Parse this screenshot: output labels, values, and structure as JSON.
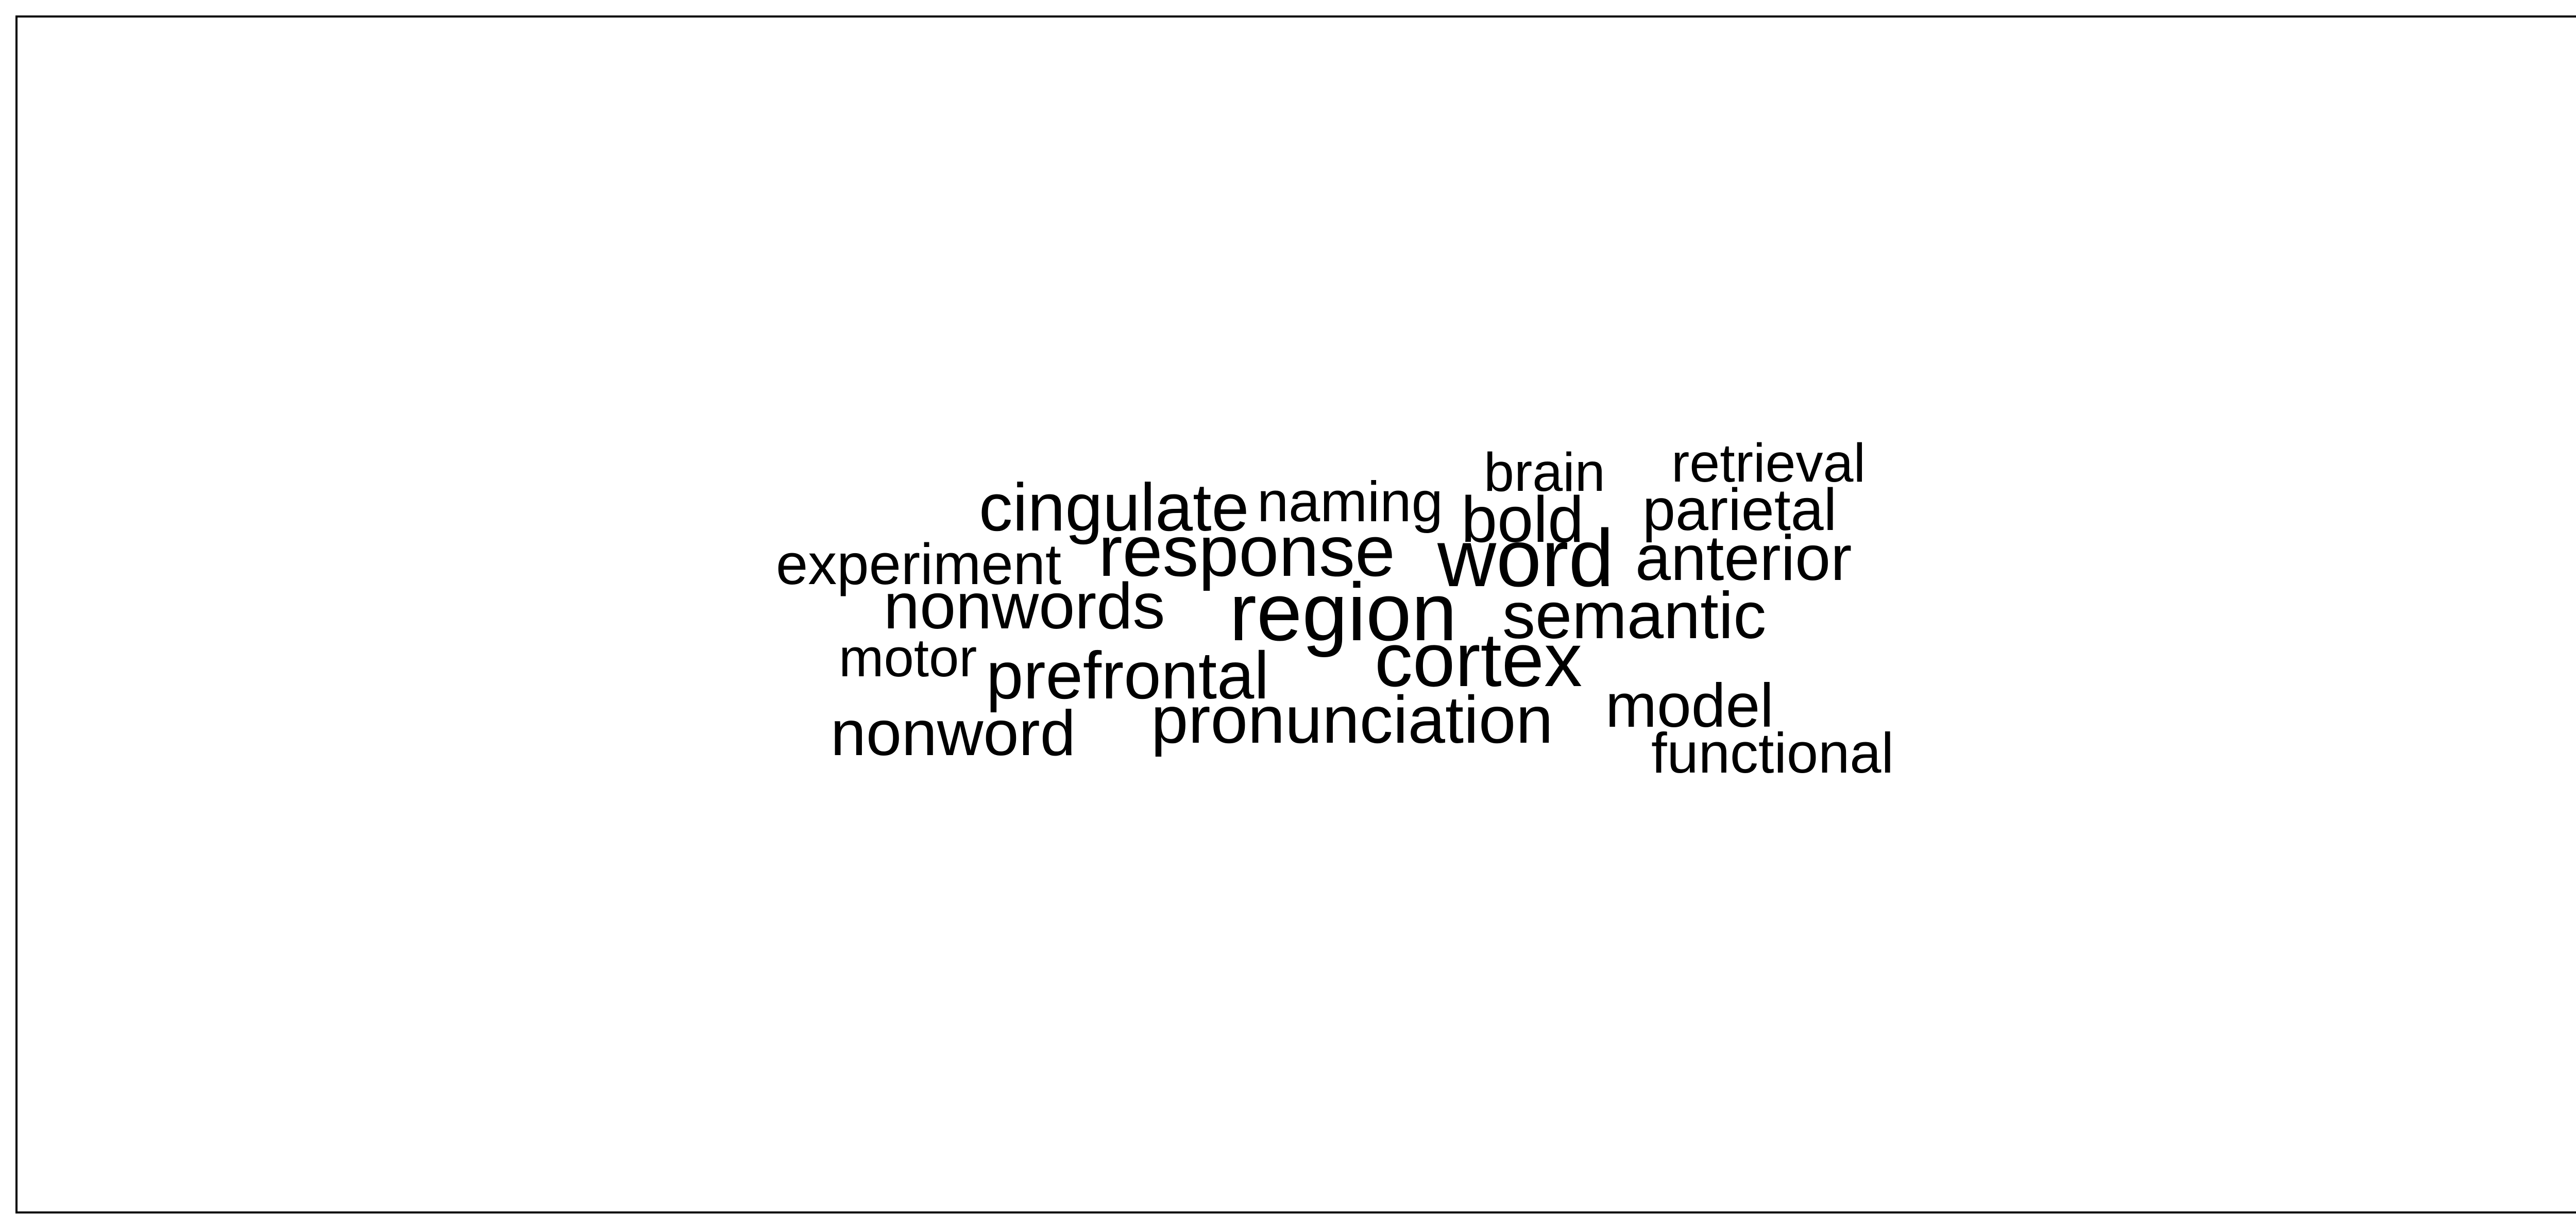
{
  "word_cloud": {
    "words": [
      {
        "text": "retrieval",
        "weight": 2
      },
      {
        "text": "brain",
        "weight": 2
      },
      {
        "text": "naming",
        "weight": 2
      },
      {
        "text": "cingulate",
        "weight": 3
      },
      {
        "text": "parietal",
        "weight": 2
      },
      {
        "text": "bold",
        "weight": 3
      },
      {
        "text": "response",
        "weight": 4
      },
      {
        "text": "word",
        "weight": 5
      },
      {
        "text": "anterior",
        "weight": 3
      },
      {
        "text": "experiment",
        "weight": 2
      },
      {
        "text": "nonwords",
        "weight": 3
      },
      {
        "text": "region",
        "weight": 5
      },
      {
        "text": "semantic",
        "weight": 3
      },
      {
        "text": "motor",
        "weight": 2
      },
      {
        "text": "cortex",
        "weight": 4
      },
      {
        "text": "prefrontal",
        "weight": 3
      },
      {
        "text": "pronunciation",
        "weight": 3
      },
      {
        "text": "model",
        "weight": 3
      },
      {
        "text": "nonword",
        "weight": 3
      },
      {
        "text": "functional",
        "weight": 2
      }
    ]
  }
}
